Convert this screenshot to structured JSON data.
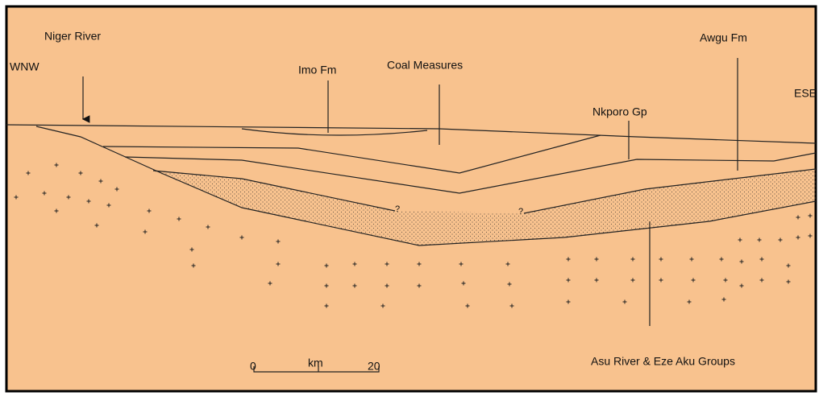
{
  "labels": {
    "niger_river": "Niger River",
    "wnw": "WNW",
    "imo_fm": "Imo Fm",
    "coal_measures": "Coal Measures",
    "awgu_fm": "Awgu Fm",
    "nkporo_gp": "Nkporo Gp",
    "ese": "ESE",
    "query_west": "?",
    "query_east": "?",
    "asu_river": "Asu River & Eze Aku Groups"
  },
  "scale_bar": {
    "start": "0",
    "unit": "km",
    "end": "20"
  }
}
